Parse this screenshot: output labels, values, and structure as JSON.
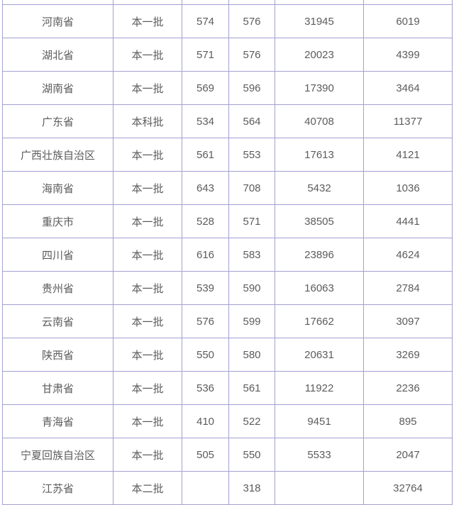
{
  "page": {
    "background_color": "#ffffff"
  },
  "table": {
    "border_color": "#a3a0d2",
    "text_color": "#5c5c5c",
    "column_keys": [
      "province",
      "batch",
      "score1",
      "score2",
      "rank1",
      "rank2"
    ],
    "rows": [
      {
        "province": "河南省",
        "batch": "本一批",
        "score1": "574",
        "score2": "576",
        "rank1": "31945",
        "rank2": "6019"
      },
      {
        "province": "湖北省",
        "batch": "本一批",
        "score1": "571",
        "score2": "576",
        "rank1": "20023",
        "rank2": "4399"
      },
      {
        "province": "湖南省",
        "batch": "本一批",
        "score1": "569",
        "score2": "596",
        "rank1": "17390",
        "rank2": "3464"
      },
      {
        "province": "广东省",
        "batch": "本科批",
        "score1": "534",
        "score2": "564",
        "rank1": "40708",
        "rank2": "11377"
      },
      {
        "province": "广西壮族自治区",
        "batch": "本一批",
        "score1": "561",
        "score2": "553",
        "rank1": "17613",
        "rank2": "4121"
      },
      {
        "province": "海南省",
        "batch": "本一批",
        "score1": "643",
        "score2": "708",
        "rank1": "5432",
        "rank2": "1036"
      },
      {
        "province": "重庆市",
        "batch": "本一批",
        "score1": "528",
        "score2": "571",
        "rank1": "38505",
        "rank2": "4441"
      },
      {
        "province": "四川省",
        "batch": "本一批",
        "score1": "616",
        "score2": "583",
        "rank1": "23896",
        "rank2": "4624"
      },
      {
        "province": "贵州省",
        "batch": "本一批",
        "score1": "539",
        "score2": "590",
        "rank1": "16063",
        "rank2": "2784"
      },
      {
        "province": "云南省",
        "batch": "本一批",
        "score1": "576",
        "score2": "599",
        "rank1": "17662",
        "rank2": "3097"
      },
      {
        "province": "陕西省",
        "batch": "本一批",
        "score1": "550",
        "score2": "580",
        "rank1": "20631",
        "rank2": "3269"
      },
      {
        "province": "甘肃省",
        "batch": "本一批",
        "score1": "536",
        "score2": "561",
        "rank1": "11922",
        "rank2": "2236"
      },
      {
        "province": "青海省",
        "batch": "本一批",
        "score1": "410",
        "score2": "522",
        "rank1": "9451",
        "rank2": "895"
      },
      {
        "province": "宁夏回族自治区",
        "batch": "本一批",
        "score1": "505",
        "score2": "550",
        "rank1": "5533",
        "rank2": "2047"
      },
      {
        "province": "江苏省",
        "batch": "本二批",
        "score1": "",
        "score2": "318",
        "rank1": "",
        "rank2": "32764"
      }
    ]
  }
}
